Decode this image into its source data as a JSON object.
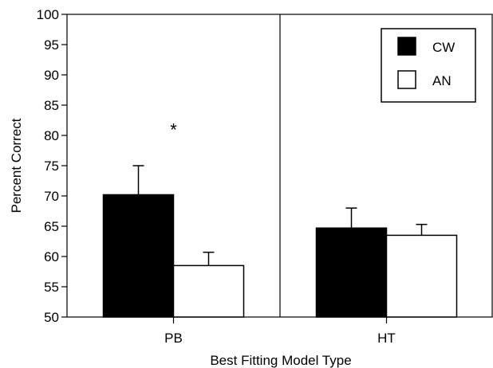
{
  "chart_data": {
    "type": "bar",
    "categories": [
      "PB",
      "HT"
    ],
    "series": [
      {
        "name": "CW",
        "values": [
          70.2,
          64.7
        ],
        "errors": [
          4.8,
          3.3
        ],
        "color": "#000000"
      },
      {
        "name": "AN",
        "values": [
          58.5,
          63.5
        ],
        "errors": [
          2.2,
          1.8
        ],
        "color": "#ffffff"
      }
    ],
    "xlabel": "Best Fitting Model Type",
    "ylabel": "Percent Correct",
    "ylim": [
      50,
      100
    ],
    "yticks": [
      50,
      55,
      60,
      65,
      70,
      75,
      80,
      85,
      90,
      95,
      100
    ],
    "legend_position": "top-right",
    "grid": false,
    "annotations": [
      {
        "text": "*",
        "category": "PB",
        "y": 81
      }
    ]
  }
}
